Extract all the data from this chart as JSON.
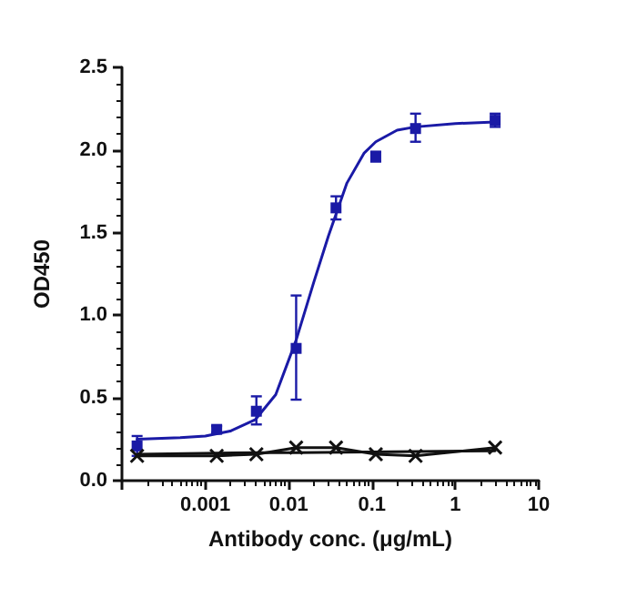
{
  "chart_data": {
    "type": "scatter",
    "xlabel": "Antibody conc. (μg/mL)",
    "ylabel": "OD450",
    "log": "x",
    "xlim": [
      0.0001,
      10
    ],
    "xticks": [
      {
        "value": 0.0001,
        "label": null
      },
      0.001,
      0.01,
      0.1,
      1,
      10
    ],
    "ylim": [
      0,
      2.5
    ],
    "yticks": [
      {
        "value": 0,
        "label": "0.0"
      },
      0.5,
      {
        "value": 1,
        "label": "1.0"
      },
      1.5,
      {
        "value": 2,
        "label": "2.0"
      },
      2.5
    ],
    "grid": false,
    "series": [
      {
        "color": "#1a1aa6",
        "marker": "square",
        "x": [
          0.000152,
          0.00137,
          0.0041,
          0.0123,
          0.037,
          0.111,
          0.333,
          3
        ],
        "values": [
          0.21,
          0.31,
          0.42,
          0.8,
          1.65,
          1.96,
          2.13,
          2.18
        ],
        "errors": [
          0.06,
          0.02,
          [
            0.34,
            0.51
          ],
          [
            0.49,
            1.12
          ],
          0.07,
          0.03,
          [
            2.05,
            2.22
          ],
          0.04
        ]
      },
      {
        "type": "line",
        "color": "#1a1aa6",
        "marker": "none",
        "x": [
          0.000152,
          0.0005,
          0.001,
          0.002,
          0.004,
          0.007,
          0.0123,
          0.02,
          0.03,
          0.05,
          0.08,
          0.111,
          0.2,
          0.333,
          1,
          3
        ],
        "values": [
          0.25,
          0.26,
          0.27,
          0.3,
          0.37,
          0.52,
          0.85,
          1.2,
          1.48,
          1.8,
          1.98,
          2.05,
          2.12,
          2.14,
          2.16,
          2.17
        ]
      },
      {
        "type": "line",
        "color": "#111111",
        "marker": "cross",
        "x": [
          0.000152,
          0.00137,
          0.0041,
          0.0123,
          0.037,
          0.111,
          0.333,
          3
        ],
        "values": [
          0.15,
          0.15,
          0.16,
          0.2,
          0.2,
          0.16,
          0.15,
          0.2
        ]
      },
      {
        "type": "line",
        "color": "#111111",
        "marker": "none",
        "x": [
          0.000152,
          0.0041,
          0.0123,
          3
        ],
        "values": [
          0.16,
          0.17,
          0.17,
          0.18
        ]
      }
    ]
  }
}
